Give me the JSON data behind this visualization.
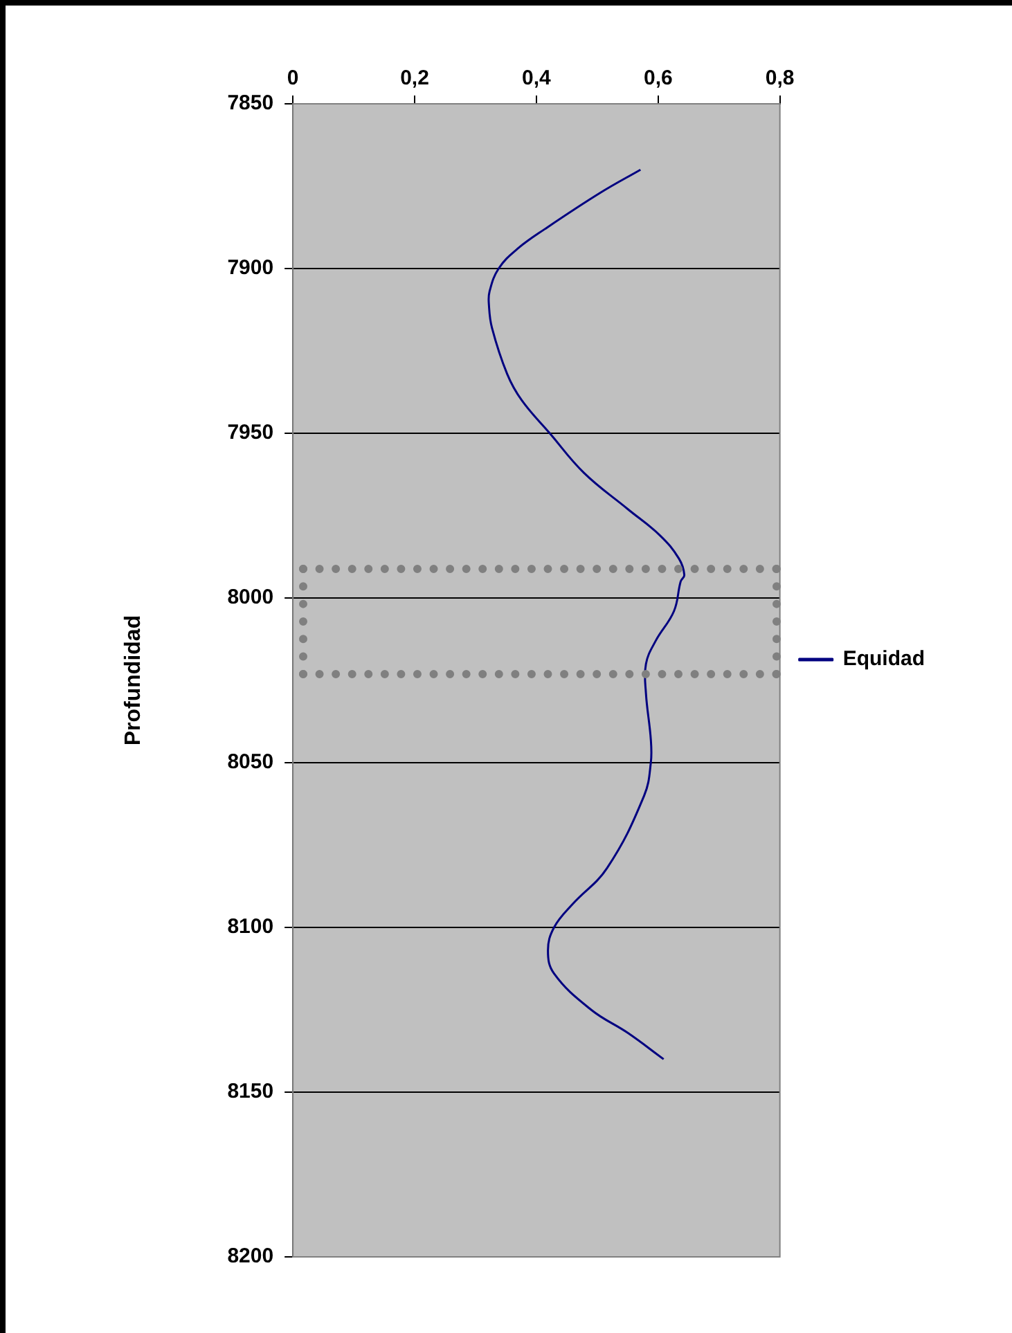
{
  "chart_data": {
    "type": "line",
    "ylabel": "Profundidad",
    "xlim": [
      0,
      0.8
    ],
    "xticks": [
      0,
      {
        "value": 0.2,
        "label": "0,2"
      },
      {
        "value": 0.4,
        "label": "0,4"
      },
      {
        "value": 0.6,
        "label": "0,6"
      },
      {
        "value": 0.8,
        "label": "0,8"
      }
    ],
    "ylim": [
      8200,
      7850
    ],
    "yticks": [
      7850,
      7900,
      7950,
      8000,
      8050,
      8100,
      8150,
      8200
    ],
    "grid": "y",
    "legend": "right",
    "marker": "none",
    "line_style": "solid",
    "series": [
      {
        "name": "Equidad",
        "color": "#000080",
        "x": [
          0.571,
          0.505,
          0.414,
          0.369,
          0.338,
          0.323,
          0.322,
          0.327,
          0.352,
          0.376,
          0.422,
          0.478,
          0.55,
          0.603,
          0.634,
          0.643,
          0.637,
          0.626,
          0.596,
          0.58,
          0.58,
          0.588,
          0.588,
          0.577,
          0.516,
          0.459,
          0.429,
          0.419,
          0.429,
          0.49,
          0.55,
          0.609
        ],
        "values": [
          7870,
          7877,
          7888,
          7894,
          7900,
          7907,
          7911,
          7918,
          7932,
          7940,
          7950,
          7962,
          7973,
          7981,
          7988,
          7993,
          7995,
          8004,
          8013,
          8020,
          8029,
          8043,
          8050,
          8060,
          8082,
          8093,
          8100,
          8107,
          8114,
          8125,
          8132,
          8140
        ]
      }
    ]
  }
}
